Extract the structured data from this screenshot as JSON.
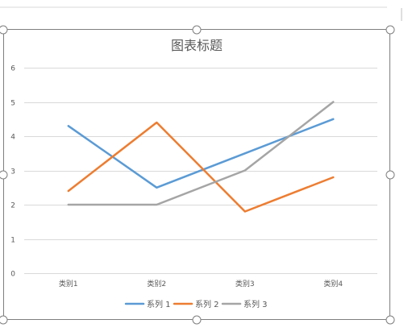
{
  "chart_data": {
    "type": "line",
    "title": "图表标题",
    "categories": [
      "类别1",
      "类别2",
      "类别3",
      "类别4"
    ],
    "ylim": [
      0,
      6
    ],
    "yticks": [
      "0",
      "1",
      "2",
      "3",
      "4",
      "5",
      "6"
    ],
    "grid": true,
    "legend_position": "bottom",
    "series": [
      {
        "name": "系列 1",
        "values": [
          4.3,
          2.5,
          3.5,
          4.5
        ],
        "color": "#5B9BD5"
      },
      {
        "name": "系列 2",
        "values": [
          2.4,
          4.4,
          1.8,
          2.8
        ],
        "color": "#ED7D31"
      },
      {
        "name": "系列 3",
        "values": [
          2.0,
          2.0,
          3.0,
          5.0
        ],
        "color": "#A5A5A5"
      }
    ]
  }
}
